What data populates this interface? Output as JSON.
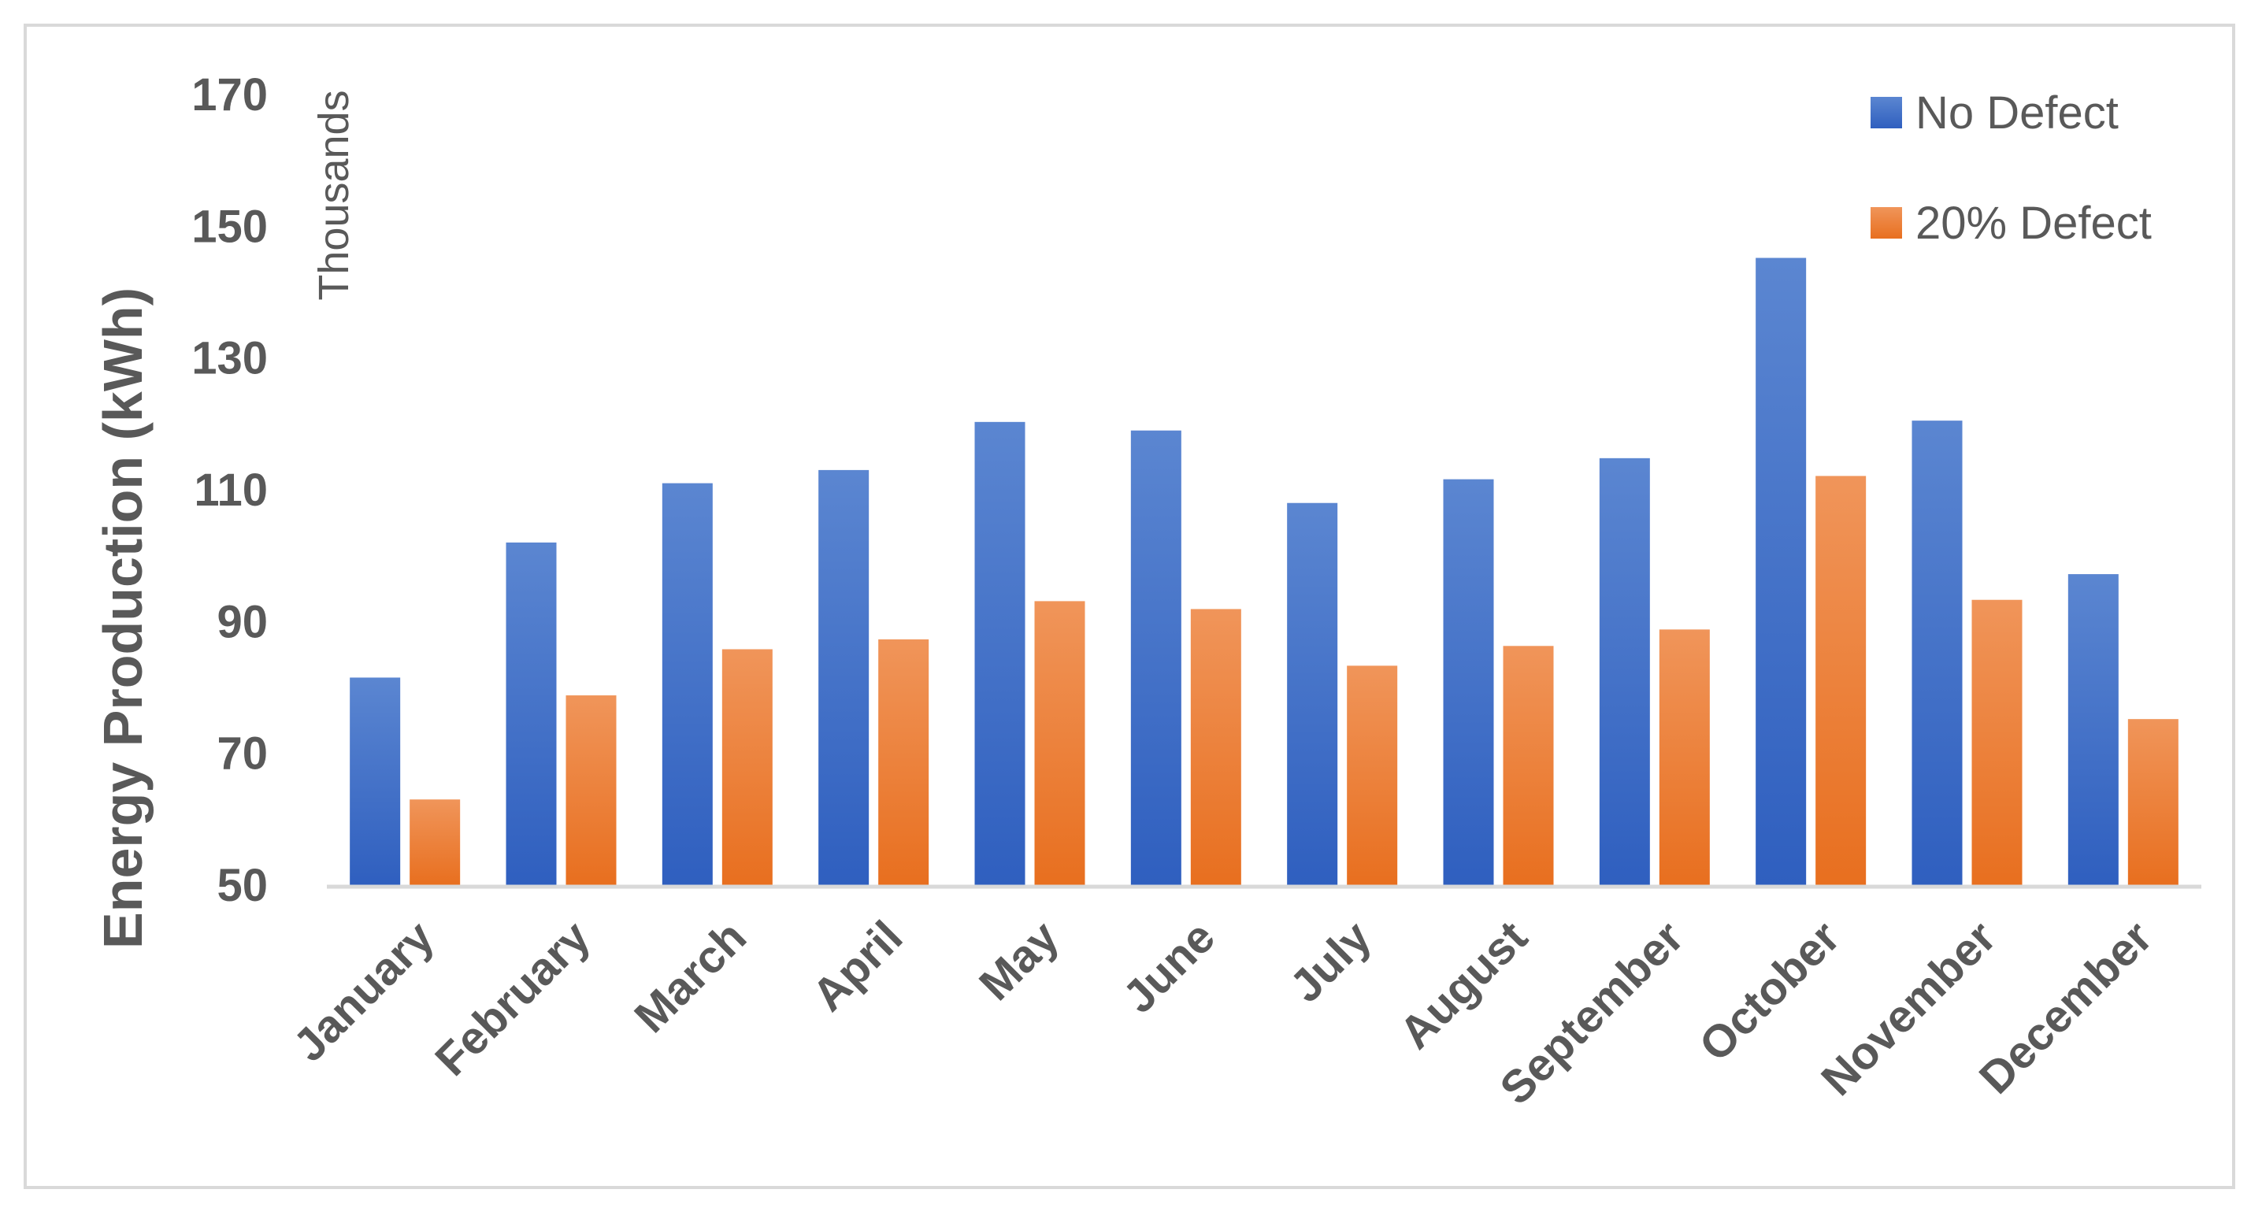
{
  "chart_data": {
    "type": "bar",
    "categories": [
      "January",
      "February",
      "March",
      "April",
      "May",
      "June",
      "July",
      "August",
      "September",
      "October",
      "November",
      "December"
    ],
    "series": [
      {
        "name": "No Defect",
        "color": "#4472c4",
        "values": [
          81.5,
          102,
          111,
          113,
          120.3,
          119,
          108,
          111.6,
          114.8,
          145.2,
          120.5,
          97.2
        ]
      },
      {
        "name": "20% Defect",
        "color": "#ed7d31",
        "values": [
          63,
          78.8,
          85.8,
          87.3,
          93.1,
          91.9,
          83.3,
          86.3,
          88.8,
          112.1,
          93.3,
          75.2
        ]
      }
    ],
    "title": "",
    "xlabel": "",
    "ylabel": "Energy Production (kWh)",
    "yunits": "Thousands",
    "yticks": [
      50,
      70,
      90,
      110,
      130,
      150,
      170
    ],
    "ylim": [
      50,
      170
    ],
    "grid": false,
    "legend_position": "top-right"
  }
}
